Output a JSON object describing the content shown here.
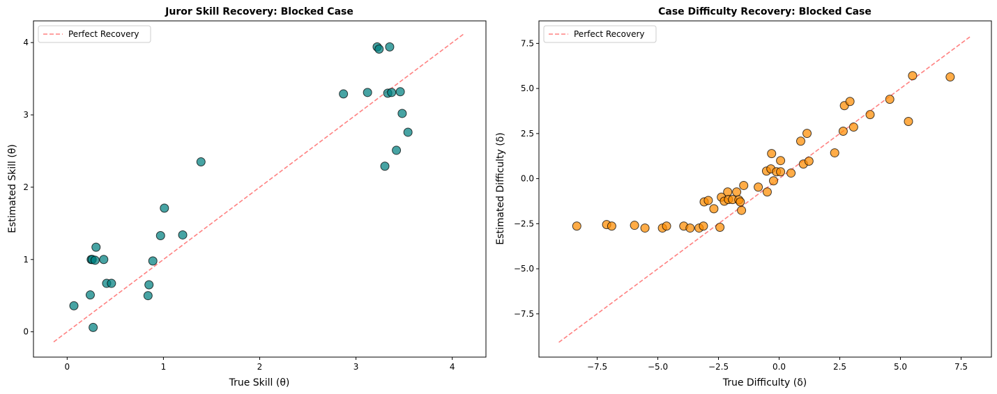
{
  "chart_data": [
    {
      "type": "scatter",
      "title": "Juror Skill Recovery: Blocked Case",
      "xlabel": "True Skill (θ)",
      "ylabel": "Estimated Skill (θ)",
      "xlim": [
        -0.35,
        4.35
      ],
      "ylim": [
        -0.35,
        4.3
      ],
      "xticks": [
        0,
        1,
        2,
        3,
        4
      ],
      "yticks": [
        0,
        1,
        2,
        3,
        4
      ],
      "xtick_labels": [
        "0",
        "1",
        "2",
        "3",
        "4"
      ],
      "ytick_labels": [
        "0",
        "1",
        "2",
        "3",
        "4"
      ],
      "grid": false,
      "legend": {
        "position": "top-left",
        "entries": [
          "Perfect Recovery"
        ]
      },
      "reference_line": {
        "name": "Perfect Recovery",
        "style": "dashed",
        "color": "#ff6b6b",
        "from": [
          -0.14,
          -0.14
        ],
        "to": [
          4.13,
          4.13
        ]
      },
      "point_color": "#008080",
      "points": [
        {
          "x": 0.3,
          "y": 1.17
        },
        {
          "x": 0.25,
          "y": 1.0
        },
        {
          "x": 0.26,
          "y": 1.0
        },
        {
          "x": 0.29,
          "y": 0.99
        },
        {
          "x": 0.38,
          "y": 1.0
        },
        {
          "x": 0.41,
          "y": 0.67
        },
        {
          "x": 0.46,
          "y": 0.67
        },
        {
          "x": 0.24,
          "y": 0.51
        },
        {
          "x": 0.07,
          "y": 0.36
        },
        {
          "x": 0.27,
          "y": 0.06
        },
        {
          "x": 0.97,
          "y": 1.33
        },
        {
          "x": 1.2,
          "y": 1.34
        },
        {
          "x": 0.89,
          "y": 0.98
        },
        {
          "x": 0.85,
          "y": 0.65
        },
        {
          "x": 0.84,
          "y": 0.5
        },
        {
          "x": 1.39,
          "y": 2.35
        },
        {
          "x": 1.01,
          "y": 1.71
        },
        {
          "x": 3.22,
          "y": 3.94
        },
        {
          "x": 3.24,
          "y": 3.91
        },
        {
          "x": 3.35,
          "y": 3.94
        },
        {
          "x": 2.87,
          "y": 3.29
        },
        {
          "x": 3.12,
          "y": 3.31
        },
        {
          "x": 3.33,
          "y": 3.3
        },
        {
          "x": 3.37,
          "y": 3.31
        },
        {
          "x": 3.46,
          "y": 3.32
        },
        {
          "x": 3.48,
          "y": 3.02
        },
        {
          "x": 3.54,
          "y": 2.76
        },
        {
          "x": 3.42,
          "y": 2.51
        },
        {
          "x": 3.3,
          "y": 2.29
        }
      ]
    },
    {
      "type": "scatter",
      "title": "Case Difficulty Recovery: Blocked Case",
      "xlabel": "True Difficulty (δ)",
      "ylabel": "Estimated Difficulty (δ)",
      "xlim": [
        -9.9,
        8.75
      ],
      "ylim": [
        -9.9,
        8.75
      ],
      "xticks": [
        -7.5,
        -5.0,
        -2.5,
        0.0,
        2.5,
        5.0,
        7.5
      ],
      "yticks": [
        -7.5,
        -5.0,
        -2.5,
        0.0,
        2.5,
        5.0,
        7.5
      ],
      "xtick_labels": [
        "−7.5",
        "−5.0",
        "−2.5",
        "0.0",
        "2.5",
        "5.0",
        "7.5"
      ],
      "ytick_labels": [
        "−7.5",
        "−5.0",
        "−2.5",
        "0.0",
        "2.5",
        "5.0",
        "7.5"
      ],
      "grid": false,
      "legend": {
        "position": "top-left",
        "entries": [
          "Perfect Recovery"
        ]
      },
      "reference_line": {
        "name": "Perfect Recovery",
        "style": "dashed",
        "color": "#ff6b6b",
        "from": [
          -9.08,
          -9.08
        ],
        "to": [
          7.86,
          7.86
        ]
      },
      "point_color": "#ff8c00",
      "points": [
        {
          "x": -8.34,
          "y": -2.63
        },
        {
          "x": -7.11,
          "y": -2.55
        },
        {
          "x": -6.9,
          "y": -2.63
        },
        {
          "x": -5.96,
          "y": -2.59
        },
        {
          "x": -5.53,
          "y": -2.74
        },
        {
          "x": -4.81,
          "y": -2.74
        },
        {
          "x": -4.64,
          "y": -2.63
        },
        {
          "x": -3.93,
          "y": -2.63
        },
        {
          "x": -3.67,
          "y": -2.74
        },
        {
          "x": -3.3,
          "y": -2.74
        },
        {
          "x": -3.12,
          "y": -2.63
        },
        {
          "x": -2.44,
          "y": -2.7
        },
        {
          "x": -3.09,
          "y": -1.29
        },
        {
          "x": -2.92,
          "y": -1.21
        },
        {
          "x": -2.69,
          "y": -1.67
        },
        {
          "x": -2.38,
          "y": -1.03
        },
        {
          "x": -2.26,
          "y": -1.25
        },
        {
          "x": -2.12,
          "y": -0.74
        },
        {
          "x": -2.09,
          "y": -1.16
        },
        {
          "x": -1.92,
          "y": -1.16
        },
        {
          "x": -1.75,
          "y": -0.74
        },
        {
          "x": -1.66,
          "y": -1.18
        },
        {
          "x": -1.6,
          "y": -1.29
        },
        {
          "x": -1.55,
          "y": -1.76
        },
        {
          "x": -1.46,
          "y": -0.38
        },
        {
          "x": -0.86,
          "y": -0.47
        },
        {
          "x": -0.49,
          "y": -0.74
        },
        {
          "x": -0.52,
          "y": 0.42
        },
        {
          "x": -0.34,
          "y": 0.54
        },
        {
          "x": -0.11,
          "y": 0.38
        },
        {
          "x": 0.06,
          "y": 0.38
        },
        {
          "x": -0.23,
          "y": -0.12
        },
        {
          "x": 0.49,
          "y": 0.31
        },
        {
          "x": -0.31,
          "y": 1.39
        },
        {
          "x": 0.06,
          "y": 1.0
        },
        {
          "x": 0.89,
          "y": 2.08
        },
        {
          "x": 1.15,
          "y": 2.51
        },
        {
          "x": 1.0,
          "y": 0.81
        },
        {
          "x": 1.23,
          "y": 0.97
        },
        {
          "x": 2.29,
          "y": 1.43
        },
        {
          "x": 2.64,
          "y": 2.63
        },
        {
          "x": 3.07,
          "y": 2.86
        },
        {
          "x": 2.69,
          "y": 4.05
        },
        {
          "x": 2.92,
          "y": 4.28
        },
        {
          "x": 3.75,
          "y": 3.55
        },
        {
          "x": 4.56,
          "y": 4.4
        },
        {
          "x": 5.33,
          "y": 3.17
        },
        {
          "x": 5.5,
          "y": 5.71
        },
        {
          "x": 7.05,
          "y": 5.64
        }
      ]
    }
  ]
}
